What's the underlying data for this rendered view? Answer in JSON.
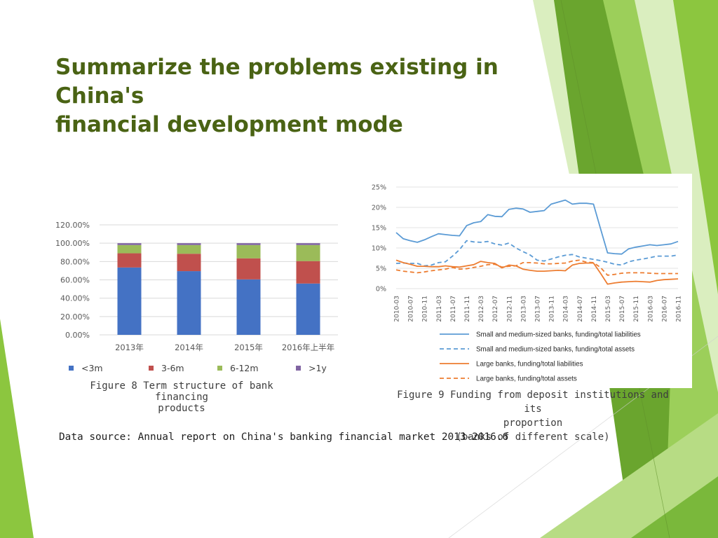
{
  "slide": {
    "title_line1": "Summarize the problems existing in China's",
    "title_line2": "financial development mode",
    "fig8_caption_line1": "Figure 8 Term structure of bank financing",
    "fig8_caption_line2": "products",
    "fig9_caption_line1": "Figure 9  Funding from deposit institutions and its",
    "fig9_caption_line2": "proportion",
    "fig9_caption_line3": "(banks of different scale)",
    "data_source": "Data source: Annual report on China's banking financial market 2013-2016.6"
  },
  "colors": {
    "title": "#4a6314",
    "accent_green": "#8cc63f",
    "dark_green": "#6aa52e"
  },
  "chart_data": [
    {
      "type": "bar",
      "stacked": true,
      "categories": [
        "2013年",
        "2014年",
        "2015年",
        "2016年上半年"
      ],
      "series": [
        {
          "name": "<3m",
          "color": "#4472c4",
          "values": [
            73.5,
            69.5,
            60.5,
            56.0
          ]
        },
        {
          "name": "3-6m",
          "color": "#c0504d",
          "values": [
            15.5,
            19.0,
            23.0,
            24.5
          ]
        },
        {
          "name": "6-12m",
          "color": "#9bbb59",
          "values": [
            9.0,
            9.5,
            14.5,
            17.5
          ]
        },
        {
          "name": ">1y",
          "color": "#8064a2",
          "values": [
            2.0,
            2.0,
            2.0,
            2.0
          ]
        }
      ],
      "ylim": [
        0,
        120
      ],
      "yticks": [
        "0.00%",
        "20.00%",
        "40.00%",
        "60.00%",
        "80.00%",
        "100.00%",
        "120.00%"
      ],
      "grid": true,
      "legend": "bottom"
    },
    {
      "type": "line",
      "x": [
        "2010-03",
        "2010-05",
        "2010-07",
        "2010-09",
        "2010-11",
        "2011-01",
        "2011-03",
        "2011-05",
        "2011-07",
        "2011-09",
        "2011-11",
        "2012-01",
        "2012-03",
        "2012-05",
        "2012-07",
        "2012-09",
        "2012-11",
        "2013-01",
        "2013-03",
        "2013-05",
        "2013-07",
        "2013-09",
        "2013-11",
        "2014-01",
        "2014-03",
        "2014-05",
        "2014-07",
        "2014-09",
        "2014-11",
        "2015-01",
        "2015-03",
        "2015-05",
        "2015-07",
        "2015-09",
        "2015-11",
        "2016-01",
        "2016-03",
        "2016-05",
        "2016-07",
        "2016-09",
        "2016-11"
      ],
      "xticks": [
        "2010-03",
        "2010-07",
        "2010-11",
        "2011-03",
        "2011-07",
        "2011-11",
        "2012-03",
        "2012-07",
        "2012-11",
        "2013-03",
        "2013-07",
        "2013-11",
        "2014-03",
        "2014-07",
        "2014-11",
        "2015-03",
        "2015-07",
        "2015-11",
        "2016-03",
        "2016-07",
        "2016-11"
      ],
      "series": [
        {
          "name": "Small and medium-sized banks, funding/total liabilities",
          "color": "#5b9bd5",
          "dash": false,
          "values": [
            13.8,
            12.3,
            11.8,
            11.4,
            12.0,
            12.8,
            13.5,
            13.3,
            13.1,
            13.0,
            15.5,
            16.2,
            16.5,
            18.2,
            17.8,
            17.7,
            19.5,
            19.8,
            19.6,
            18.8,
            19.0,
            19.2,
            20.8,
            21.3,
            21.8,
            20.8,
            21.0,
            21.0,
            20.8,
            14.8,
            8.8,
            8.6,
            8.5,
            9.8,
            10.2,
            10.5,
            10.8,
            10.6,
            10.8,
            11.0,
            11.6
          ]
        },
        {
          "name": "Small and medium-sized banks, funding/total assets",
          "color": "#5b9bd5",
          "dash": true,
          "values": [
            6.2,
            6.3,
            6.2,
            6.2,
            5.6,
            5.8,
            6.4,
            6.6,
            8.0,
            9.6,
            11.8,
            11.5,
            11.4,
            11.6,
            11.0,
            10.7,
            11.2,
            10.0,
            9.1,
            8.3,
            7.0,
            6.8,
            7.3,
            7.8,
            8.2,
            8.4,
            7.8,
            7.5,
            7.2,
            6.9,
            6.5,
            6.0,
            5.8,
            6.6,
            7.0,
            7.3,
            7.6,
            8.0,
            8.0,
            8.0,
            8.3
          ]
        },
        {
          "name": "Large banks, funding/total liabilities",
          "color": "#ed7d31",
          "dash": false,
          "values": [
            7.0,
            6.4,
            6.0,
            5.5,
            5.5,
            5.4,
            5.4,
            5.6,
            5.4,
            5.3,
            5.6,
            5.9,
            6.7,
            6.4,
            6.2,
            5.1,
            5.8,
            5.6,
            4.8,
            4.5,
            4.3,
            4.3,
            4.4,
            4.5,
            4.4,
            5.8,
            6.2,
            6.3,
            6.3,
            3.8,
            1.1,
            1.4,
            1.6,
            1.7,
            1.8,
            1.7,
            1.6,
            2.0,
            2.2,
            2.3,
            2.4
          ]
        },
        {
          "name": "Large banks, funding/total assets",
          "color": "#ed7d31",
          "dash": true,
          "values": [
            4.6,
            4.3,
            4.1,
            3.9,
            4.1,
            4.4,
            4.6,
            4.8,
            5.2,
            4.8,
            4.9,
            5.2,
            5.5,
            5.9,
            6.0,
            5.3,
            5.5,
            5.6,
            6.4,
            6.4,
            6.3,
            6.1,
            6.1,
            6.2,
            6.3,
            6.8,
            7.0,
            6.5,
            6.4,
            5.2,
            3.3,
            3.5,
            3.8,
            3.9,
            3.9,
            3.9,
            3.8,
            3.7,
            3.7,
            3.7,
            3.7
          ]
        }
      ],
      "ylim": [
        0,
        25
      ],
      "yticks": [
        "0%",
        "5%",
        "10%",
        "15%",
        "20%",
        "25%"
      ],
      "grid": true,
      "legend": "bottom"
    }
  ]
}
